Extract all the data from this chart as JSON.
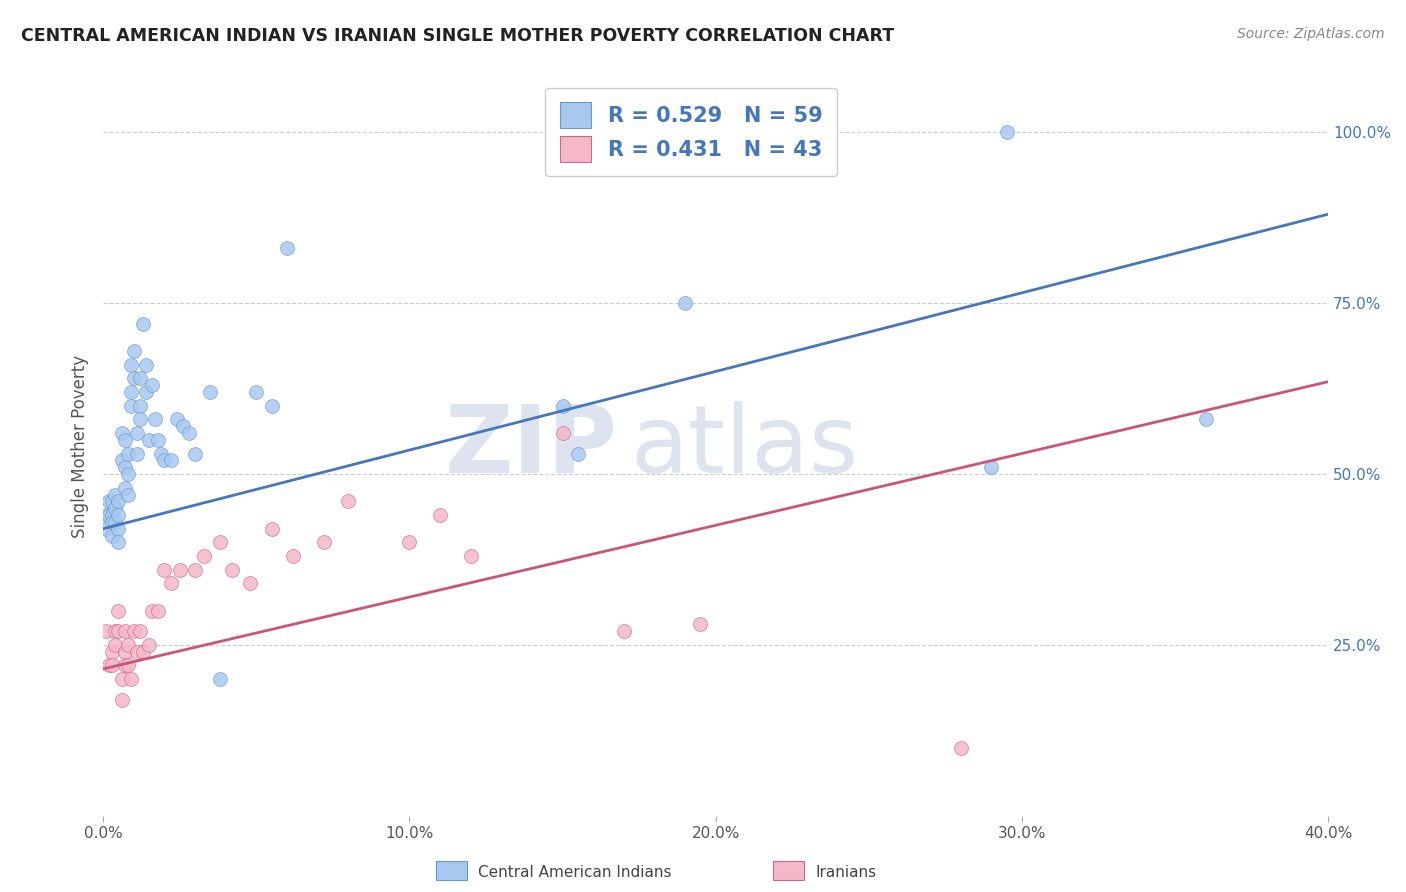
{
  "title": "CENTRAL AMERICAN INDIAN VS IRANIAN SINGLE MOTHER POVERTY CORRELATION CHART",
  "source": "Source: ZipAtlas.com",
  "ylabel": "Single Mother Poverty",
  "blue_label": "Central American Indians",
  "pink_label": "Iranians",
  "blue_R": 0.529,
  "blue_N": 59,
  "pink_R": 0.431,
  "pink_N": 43,
  "xlim": [
    0.0,
    0.4
  ],
  "ylim": [
    0.0,
    1.08
  ],
  "ytick_positions": [
    0.25,
    0.5,
    0.75,
    1.0
  ],
  "ytick_labels": [
    "25.0%",
    "50.0%",
    "75.0%",
    "100.0%"
  ],
  "blue_scatter_color": "#a8c8f0",
  "blue_edge_color": "#6699cc",
  "pink_scatter_color": "#f5b8c8",
  "pink_edge_color": "#cc6688",
  "blue_line_color": "#4477bb",
  "pink_line_color": "#cc5577",
  "blue_line_intercept": 0.42,
  "blue_line_slope": 1.15,
  "pink_line_intercept": 0.215,
  "pink_line_slope": 1.05,
  "blue_x": [
    0.001,
    0.001,
    0.002,
    0.002,
    0.003,
    0.003,
    0.003,
    0.003,
    0.004,
    0.004,
    0.004,
    0.005,
    0.005,
    0.005,
    0.005,
    0.006,
    0.006,
    0.007,
    0.007,
    0.007,
    0.008,
    0.008,
    0.008,
    0.009,
    0.009,
    0.009,
    0.01,
    0.01,
    0.011,
    0.011,
    0.012,
    0.012,
    0.012,
    0.013,
    0.014,
    0.014,
    0.015,
    0.016,
    0.017,
    0.018,
    0.019,
    0.02,
    0.022,
    0.024,
    0.026,
    0.028,
    0.03,
    0.035,
    0.038,
    0.05,
    0.055,
    0.06,
    0.15,
    0.155,
    0.19,
    0.195,
    0.29,
    0.295,
    0.36
  ],
  "blue_y": [
    0.44,
    0.42,
    0.44,
    0.46,
    0.44,
    0.43,
    0.41,
    0.46,
    0.47,
    0.45,
    0.43,
    0.46,
    0.44,
    0.42,
    0.4,
    0.56,
    0.52,
    0.55,
    0.51,
    0.48,
    0.53,
    0.5,
    0.47,
    0.66,
    0.62,
    0.6,
    0.64,
    0.68,
    0.56,
    0.53,
    0.64,
    0.6,
    0.58,
    0.72,
    0.66,
    0.62,
    0.55,
    0.63,
    0.58,
    0.55,
    0.53,
    0.52,
    0.52,
    0.58,
    0.57,
    0.56,
    0.53,
    0.62,
    0.2,
    0.62,
    0.6,
    0.83,
    0.6,
    0.53,
    0.75,
    1.0,
    0.51,
    1.0,
    0.58
  ],
  "pink_x": [
    0.001,
    0.002,
    0.003,
    0.003,
    0.004,
    0.004,
    0.005,
    0.005,
    0.006,
    0.006,
    0.007,
    0.007,
    0.007,
    0.008,
    0.008,
    0.009,
    0.01,
    0.011,
    0.012,
    0.013,
    0.015,
    0.016,
    0.018,
    0.02,
    0.022,
    0.025,
    0.03,
    0.033,
    0.038,
    0.042,
    0.048,
    0.055,
    0.062,
    0.072,
    0.08,
    0.1,
    0.11,
    0.12,
    0.15,
    0.17,
    0.195,
    0.22,
    0.28
  ],
  "pink_y": [
    0.27,
    0.22,
    0.24,
    0.22,
    0.27,
    0.25,
    0.3,
    0.27,
    0.2,
    0.17,
    0.27,
    0.24,
    0.22,
    0.25,
    0.22,
    0.2,
    0.27,
    0.24,
    0.27,
    0.24,
    0.25,
    0.3,
    0.3,
    0.36,
    0.34,
    0.36,
    0.36,
    0.38,
    0.4,
    0.36,
    0.34,
    0.42,
    0.38,
    0.4,
    0.46,
    0.4,
    0.44,
    0.38,
    0.56,
    0.27,
    0.28,
    1.0,
    0.1
  ],
  "background_color": "#ffffff",
  "grid_color": "#cccccc",
  "watermark_color": "#dde4f0"
}
